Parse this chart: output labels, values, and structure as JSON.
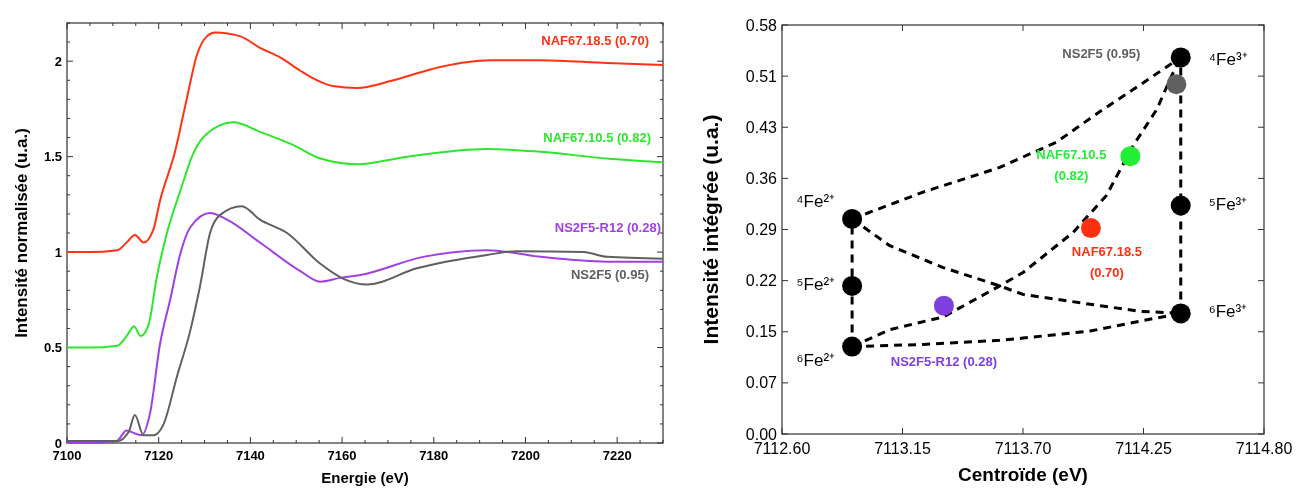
{
  "chart_data": [
    {
      "type": "line",
      "xlabel": "Energie (eV)",
      "ylabel": "Intensité normalisée (u.a.)",
      "xlim": [
        7100,
        7230
      ],
      "ylim": [
        0,
        2.2
      ],
      "xticks": [
        7100,
        {
          "value": 7105,
          "label": null
        },
        {
          "value": 7110,
          "label": null
        },
        {
          "value": 7115,
          "label": null
        },
        7120,
        {
          "value": 7125,
          "label": null
        },
        {
          "value": 7130,
          "label": null
        },
        {
          "value": 7135,
          "label": null
        },
        7140,
        {
          "value": 7145,
          "label": null
        },
        {
          "value": 7150,
          "label": null
        },
        {
          "value": 7155,
          "label": null
        },
        7160,
        {
          "value": 7165,
          "label": null
        },
        {
          "value": 7170,
          "label": null
        },
        {
          "value": 7175,
          "label": null
        },
        7180,
        {
          "value": 7185,
          "label": null
        },
        {
          "value": 7190,
          "label": null
        },
        {
          "value": 7195,
          "label": null
        },
        7200,
        {
          "value": 7205,
          "label": null
        },
        {
          "value": 7210,
          "label": null
        },
        {
          "value": 7215,
          "label": null
        },
        7220,
        {
          "value": 7225,
          "label": null
        },
        {
          "value": 7230,
          "label": null
        }
      ],
      "yticks": [
        0,
        {
          "value": 0.1,
          "label": null
        },
        {
          "value": 0.2,
          "label": null
        },
        {
          "value": 0.3,
          "label": null
        },
        {
          "value": 0.4,
          "label": null
        },
        0.5,
        {
          "value": 0.6,
          "label": null
        },
        {
          "value": 0.7,
          "label": null
        },
        {
          "value": 0.8,
          "label": null
        },
        {
          "value": 0.9,
          "label": null
        },
        1,
        {
          "value": 1.1,
          "label": null
        },
        {
          "value": 1.2,
          "label": null
        },
        {
          "value": 1.3,
          "label": null
        },
        {
          "value": 1.4,
          "label": null
        },
        1.5,
        {
          "value": 1.6,
          "label": null
        },
        {
          "value": 1.7,
          "label": null
        },
        {
          "value": 1.8,
          "label": null
        },
        {
          "value": 1.9,
          "label": null
        },
        2,
        {
          "value": 2.1,
          "label": null
        },
        {
          "value": 2.2,
          "label": null
        }
      ],
      "series": [
        {
          "name": "NAF67.18.5 (0.70)",
          "color": "#ff3314",
          "x": [
            7100,
            7105,
            7111,
            7113,
            7114.8,
            7116.7,
            7118.8,
            7120.3,
            7123.6,
            7126.1,
            7128.3,
            7130.5,
            7132.3,
            7137.8,
            7142.1,
            7146.5,
            7150.9,
            7153.7,
            7158,
            7163.3,
            7171.2,
            7181.4,
            7192.4,
            7203.3,
            7217.8,
            7230
          ],
          "values": [
            1.0,
            1.0,
            1.01,
            1.05,
            1.09,
            1.05,
            1.115,
            1.27,
            1.53,
            1.8,
            2.03,
            2.13,
            2.15,
            2.13,
            2.07,
            2.02,
            1.95,
            1.91,
            1.87,
            1.86,
            1.9,
            1.97,
            2.005,
            2.005,
            1.99,
            1.98
          ]
        },
        {
          "name": "NAF67.10.5 (0.82)",
          "color": "#2ee62e",
          "x": [
            7100,
            7105,
            7111,
            7113,
            7114.6,
            7116.1,
            7117.8,
            7119.6,
            7121.8,
            7124.7,
            7127.6,
            7130.5,
            7136.3,
            7142.1,
            7149.4,
            7155.3,
            7163.3,
            7174.2,
            7191.7,
            7203.3,
            7217.8,
            7230
          ],
          "values": [
            0.5,
            0.5,
            0.51,
            0.56,
            0.61,
            0.56,
            0.62,
            0.87,
            1.1,
            1.32,
            1.52,
            1.62,
            1.68,
            1.63,
            1.56,
            1.49,
            1.46,
            1.5,
            1.54,
            1.525,
            1.49,
            1.47
          ]
        },
        {
          "name": "NS2F5-R12 (0.28)",
          "color": "#a040e0",
          "x": [
            7100,
            7105,
            7110.8,
            7113,
            7114.8,
            7116.3,
            7118.1,
            7120.3,
            7122.5,
            7124.7,
            7126.9,
            7131.2,
            7134.9,
            7142.1,
            7150.9,
            7155.2,
            7159.6,
            7164,
            7177.7,
            7191.6,
            7203.3,
            7217.8,
            7230
          ],
          "values": [
            0,
            0,
            0.01,
            0.065,
            0.05,
            0.04,
            0.155,
            0.52,
            0.75,
            0.99,
            1.13,
            1.205,
            1.17,
            1.05,
            0.9,
            0.845,
            0.865,
            0.88,
            0.975,
            1.01,
            0.975,
            0.95,
            0.95
          ]
        },
        {
          "name": "NS2F5 (0.95)",
          "color": "#606060",
          "x": [
            7100,
            7105,
            7111,
            7113.5,
            7114.8,
            7116.7,
            7118.8,
            7121,
            7124,
            7126.9,
            7129,
            7131.2,
            7133.4,
            7138.1,
            7142.1,
            7148,
            7155.2,
            7160.3,
            7165.4,
            7176.3,
            7191.6,
            7198.2,
            7212.7,
            7217.8,
            7230
          ],
          "values": [
            0.01,
            0.01,
            0.01,
            0.06,
            0.147,
            0.04,
            0.04,
            0.095,
            0.35,
            0.59,
            0.82,
            1.1,
            1.195,
            1.24,
            1.17,
            1.1,
            0.94,
            0.86,
            0.83,
            0.915,
            0.985,
            1.005,
            1.0,
            0.975,
            0.965
          ]
        }
      ]
    },
    {
      "type": "scatter",
      "xlabel": "Centroïde (eV)",
      "ylabel": "Intensité intégrée (u.a.)",
      "xlim": [
        7112.6,
        7114.8
      ],
      "ylim": [
        0,
        0.58
      ],
      "xticks": [
        {
          "value": 7112.6,
          "label": "7112.60"
        },
        {
          "value": 7113.15,
          "label": "7113.15"
        },
        {
          "value": 7113.7,
          "label": "7113.70"
        },
        {
          "value": 7114.25,
          "label": "7114.25"
        },
        {
          "value": 7114.8,
          "label": "7114.80"
        }
      ],
      "yticks": [
        {
          "value": 0,
          "label": "0.00"
        },
        {
          "value": 0.0725,
          "label": "0.07"
        },
        {
          "value": 0.145,
          "label": "0.15"
        },
        {
          "value": 0.2175,
          "label": "0.22"
        },
        {
          "value": 0.29,
          "label": "0.29"
        },
        {
          "value": 0.3625,
          "label": "0.36"
        },
        {
          "value": 0.435,
          "label": "0.43"
        },
        {
          "value": 0.5075,
          "label": "0.51"
        },
        {
          "value": 0.58,
          "label": "0.58"
        }
      ],
      "series": [
        {
          "type": "line",
          "color": "#000000",
          "line_style": "dashed",
          "marker": "none",
          "x": [
            7112.92,
            7113.244,
            7113.594,
            7113.853,
            7114.05,
            7114.234,
            7114.42
          ],
          "values": [
            0.305,
            0.343,
            0.378,
            0.414,
            0.457,
            0.495,
            0.534
          ]
        },
        {
          "type": "line",
          "color": "#000000",
          "line_style": "dashed",
          "marker": "none",
          "x": [
            7112.92,
            7113.092,
            7113.336,
            7113.594,
            7113.7,
            7114.006,
            7114.234,
            7114.42
          ],
          "values": [
            0.305,
            0.267,
            0.236,
            0.21,
            0.198,
            0.184,
            0.174,
            0.171
          ]
        },
        {
          "type": "line",
          "color": "#000000",
          "line_style": "dashed",
          "marker": "none",
          "x": [
            7112.92,
            7113.244,
            7113.594,
            7113.7,
            7114.006,
            7114.234,
            7114.42
          ],
          "values": [
            0.124,
            0.127,
            0.133,
            0.136,
            0.146,
            0.16,
            0.171
          ]
        },
        {
          "type": "line",
          "color": "#000000",
          "line_style": "dashed",
          "marker": "none",
          "x": [
            7112.92,
            7113.092,
            7113.336,
            7113.594,
            7113.7,
            7113.929,
            7114.08,
            7114.203,
            7114.31,
            7114.38,
            7114.42
          ],
          "values": [
            0.124,
            0.148,
            0.166,
            0.21,
            0.229,
            0.286,
            0.338,
            0.409,
            0.46,
            0.509,
            0.534
          ]
        },
        {
          "type": "line",
          "color": "#000000",
          "line_style": "dashed",
          "marker": "none",
          "x": [
            7112.92,
            7112.92,
            7112.92
          ],
          "values": [
            0.124,
            0.21,
            0.305
          ]
        },
        {
          "type": "line",
          "color": "#000000",
          "line_style": "dashed",
          "marker": "none",
          "x": [
            7114.42,
            7114.42,
            7114.42
          ],
          "values": [
            0.171,
            0.324,
            0.534
          ]
        },
        {
          "name": "⁴Fe²⁺",
          "color": "#000000",
          "marker": "circle",
          "x": [
            7112.92
          ],
          "values": [
            0.305
          ]
        },
        {
          "name": "⁵Fe²⁺",
          "color": "#000000",
          "marker": "circle",
          "x": [
            7112.92
          ],
          "values": [
            0.21
          ]
        },
        {
          "name": "⁶Fe²⁺",
          "color": "#000000",
          "marker": "circle",
          "x": [
            7112.92
          ],
          "values": [
            0.124
          ]
        },
        {
          "name": "⁴Fe³⁺",
          "color": "#000000",
          "marker": "circle",
          "x": [
            7114.42
          ],
          "values": [
            0.534
          ]
        },
        {
          "name": "⁵Fe³⁺",
          "color": "#000000",
          "marker": "circle",
          "x": [
            7114.42
          ],
          "values": [
            0.324
          ]
        },
        {
          "name": "⁶Fe³⁺",
          "color": "#000000",
          "marker": "circle",
          "x": [
            7114.42
          ],
          "values": [
            0.171
          ]
        },
        {
          "name": "NS2F5 (0.95)",
          "color": "#5f5f5f",
          "marker": "circle",
          "x": [
            7114.4
          ],
          "values": [
            0.496
          ]
        },
        {
          "name": "NAF67.10.5 (0.82)",
          "color": "#22ee33",
          "marker": "circle",
          "x": [
            7114.19
          ],
          "values": [
            0.394
          ]
        },
        {
          "name": "NAF67.18.5 (0.70)",
          "color": "#ff3010",
          "marker": "circle",
          "x": [
            7114.01
          ],
          "values": [
            0.292
          ]
        },
        {
          "name": "NS2F5-R12 (0.28)",
          "color": "#7f3fdf",
          "marker": "circle",
          "x": [
            7113.339
          ],
          "values": [
            0.182
          ]
        }
      ]
    }
  ]
}
